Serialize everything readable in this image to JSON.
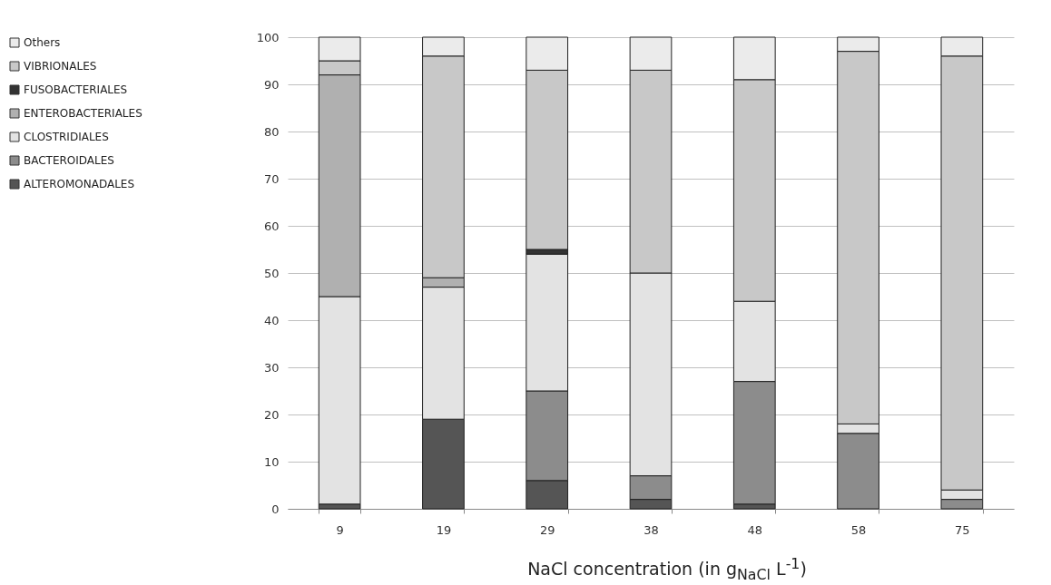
{
  "chart_data": {
    "type": "bar",
    "stacked": true,
    "xlabel": "NaCl concentration (in g$_{NaCl}$ L$^{-1}$)",
    "categories": [
      "9",
      "19",
      "29",
      "38",
      "48",
      "58",
      "75"
    ],
    "series": [
      {
        "name": "ALTEROMONADALES",
        "color": "#555555",
        "values": [
          1,
          19,
          6,
          2,
          1,
          0,
          0
        ]
      },
      {
        "name": "BACTEROIDALES",
        "color": "#8c8c8c",
        "values": [
          0,
          0,
          19,
          5,
          26,
          16,
          2
        ]
      },
      {
        "name": "CLOSTRIDIALES",
        "color": "#e3e3e3",
        "values": [
          44,
          28,
          29,
          43,
          17,
          2,
          2
        ]
      },
      {
        "name": "ENTEROBACTERIALES",
        "color": "#b0b0b0",
        "values": [
          47,
          2,
          0,
          0,
          0,
          0,
          0
        ]
      },
      {
        "name": "FUSOBACTERIALES",
        "color": "#333333",
        "values": [
          0,
          0,
          1,
          0,
          0,
          0,
          0
        ]
      },
      {
        "name": "VIBRIONALES",
        "color": "#c8c8c8",
        "values": [
          3,
          47,
          38,
          43,
          47,
          79,
          92
        ]
      },
      {
        "name": "Others",
        "color": "#ebebeb",
        "values": [
          5,
          4,
          7,
          7,
          9,
          3,
          4
        ]
      }
    ],
    "ylim": [
      0,
      100
    ],
    "yticks": [
      0,
      10,
      20,
      30,
      40,
      50,
      60,
      70,
      80,
      90,
      100
    ],
    "grid": "y",
    "legend": "left"
  }
}
